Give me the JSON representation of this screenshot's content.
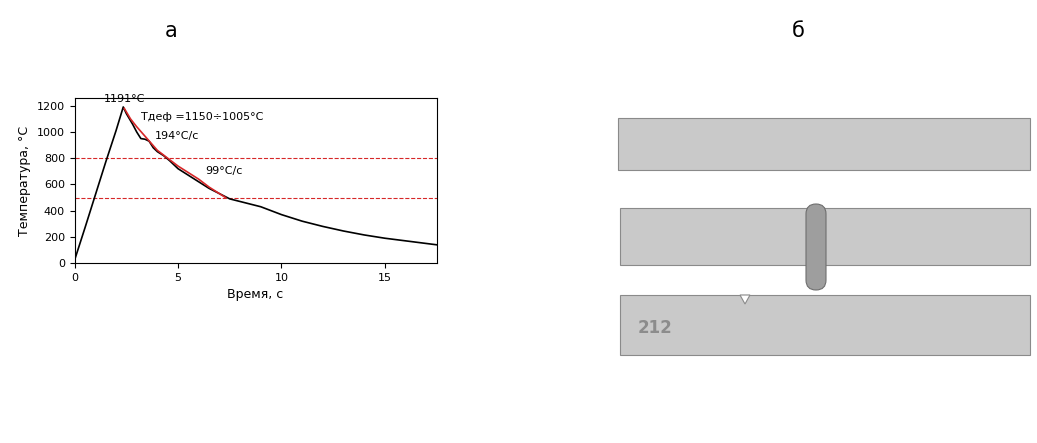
{
  "chart_data": {
    "type": "line",
    "x_label": "Время, с",
    "y_label": "Температура, °C",
    "xlim": [
      0,
      17.5
    ],
    "xticks": [
      0,
      5,
      10,
      15
    ],
    "ylim": [
      0,
      1260
    ],
    "yticks": [
      0,
      200,
      400,
      600,
      800,
      1000,
      1200
    ],
    "grid": false,
    "series": [
      {
        "color": "#000000",
        "line_style": "solid",
        "x": [
          0,
          0.5,
          1.0,
          1.5,
          2.0,
          2.35,
          2.5,
          2.8,
          3.0,
          3.2,
          3.4,
          3.6,
          3.8,
          4.0,
          4.3,
          4.6,
          5.0,
          5.5,
          6.0,
          6.5,
          7.0,
          7.5,
          8.0,
          9.0,
          10.0,
          11.0,
          12.0,
          13.0,
          14.0,
          15.0,
          16.0,
          17.5
        ],
        "values": [
          25,
          270,
          520,
          770,
          1010,
          1191,
          1140,
          1060,
          1000,
          950,
          945,
          930,
          880,
          850,
          820,
          780,
          720,
          670,
          620,
          570,
          530,
          490,
          470,
          430,
          370,
          320,
          280,
          245,
          215,
          190,
          170,
          140
        ]
      },
      {
        "color": "#d62728",
        "line_style": "solid",
        "x": [
          2.4,
          2.7,
          3.0,
          3.5,
          4.0,
          4.5,
          5.0,
          5.5,
          6.0,
          6.5,
          7.0,
          7.3
        ],
        "values": [
          1180,
          1100,
          1040,
          950,
          860,
          800,
          740,
          690,
          640,
          580,
          530,
          500
        ]
      }
    ],
    "reference_lines": [
      {
        "value": 800,
        "color": "#d62728",
        "line_style": "dashed"
      },
      {
        "value": 500,
        "color": "#d62728",
        "line_style": "dashed"
      }
    ],
    "annotations": [
      {
        "text": "1191°C",
        "x": 1.4,
        "y": 1225
      },
      {
        "text": "Тдеф =1150÷1005°C",
        "x": 3.2,
        "y": 1090
      },
      {
        "text": "194°C/с",
        "x": 3.9,
        "y": 950
      },
      {
        "text": "99°C/с",
        "x": 6.3,
        "y": 680
      }
    ]
  },
  "panel_labels": [
    "а",
    "б"
  ],
  "photo": {
    "marking": "212"
  }
}
